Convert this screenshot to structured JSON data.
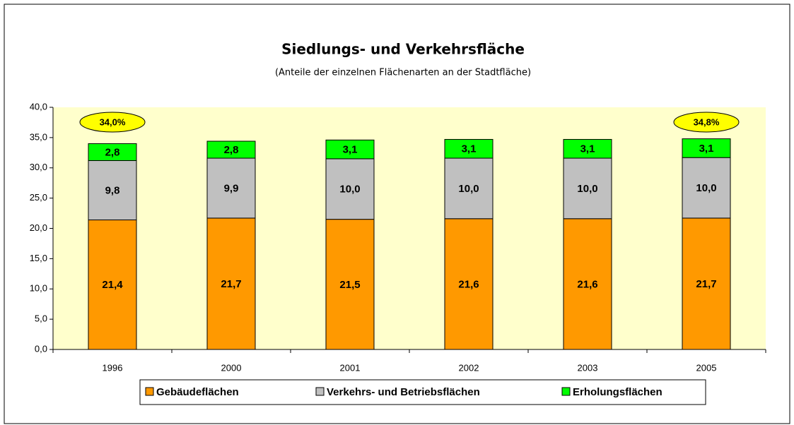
{
  "chart_data": {
    "type": "stacked_bar",
    "title": "Siedlungs- und Verkehrsfläche",
    "subtitle": "(Anteile der einzelnen Flächenarten an der Stadtfläche)",
    "categories": [
      "1996",
      "2000",
      "2001",
      "2002",
      "2003",
      "2005"
    ],
    "series": [
      {
        "name": "Gebäudeflächen",
        "color": "#FF9900",
        "values": [
          21.4,
          21.7,
          21.5,
          21.6,
          21.6,
          21.7
        ],
        "value_labels": [
          "21,4",
          "21,7",
          "21,5",
          "21,6",
          "21,6",
          "21,7"
        ]
      },
      {
        "name": "Verkehrs- und Betriebsflächen",
        "color": "#C0C0C0",
        "values": [
          9.8,
          9.9,
          10.0,
          10.0,
          10.0,
          10.0
        ],
        "value_labels": [
          "9,8",
          "9,9",
          "10,0",
          "10,0",
          "10,0",
          "10,0"
        ]
      },
      {
        "name": "Erholungsflächen",
        "color": "#00FF00",
        "values": [
          2.8,
          2.8,
          3.1,
          3.1,
          3.1,
          3.1
        ],
        "value_labels": [
          "2,8",
          "2,8",
          "3,1",
          "3,1",
          "3,1",
          "3,1"
        ]
      }
    ],
    "annotations": [
      {
        "x": "1996",
        "label": "34,0%"
      },
      {
        "x": "2005",
        "label": "34,8%"
      }
    ],
    "ylim": [
      0,
      40
    ],
    "yticks": [
      {
        "value": 0,
        "label": "0,0"
      },
      {
        "value": 5,
        "label": "5,0"
      },
      {
        "value": 10,
        "label": "10,0"
      },
      {
        "value": 15,
        "label": "15,0"
      },
      {
        "value": 20,
        "label": "20,0"
      },
      {
        "value": 25,
        "label": "25,0"
      },
      {
        "value": 30,
        "label": "30,0"
      },
      {
        "value": 35,
        "label": "35,0"
      },
      {
        "value": 40,
        "label": "40,0"
      }
    ],
    "legend": "bottom"
  }
}
